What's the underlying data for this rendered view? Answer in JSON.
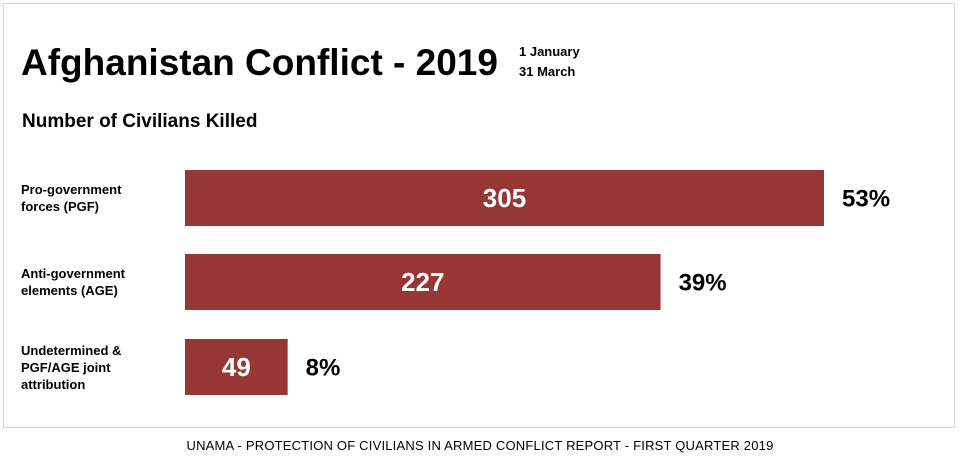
{
  "chart_data": {
    "type": "bar",
    "orientation": "horizontal",
    "title": "Afghanistan Conflict - 2019",
    "date_lines": [
      "1 January",
      "31 March"
    ],
    "subtitle": "Number of Civilians Killed",
    "categories": [
      "Pro-government forces (PGF)",
      "Anti-government elements (AGE)",
      "Undetermined & PGF/AGE joint attribution"
    ],
    "values": [
      305,
      227,
      49
    ],
    "share_labels": [
      "53%",
      "39%",
      "8%"
    ],
    "color": "#963735",
    "source": "UNAMA - PROTECTION OF CIVILIANS IN ARMED CONFLICT REPORT - FIRST QUARTER 2019"
  }
}
